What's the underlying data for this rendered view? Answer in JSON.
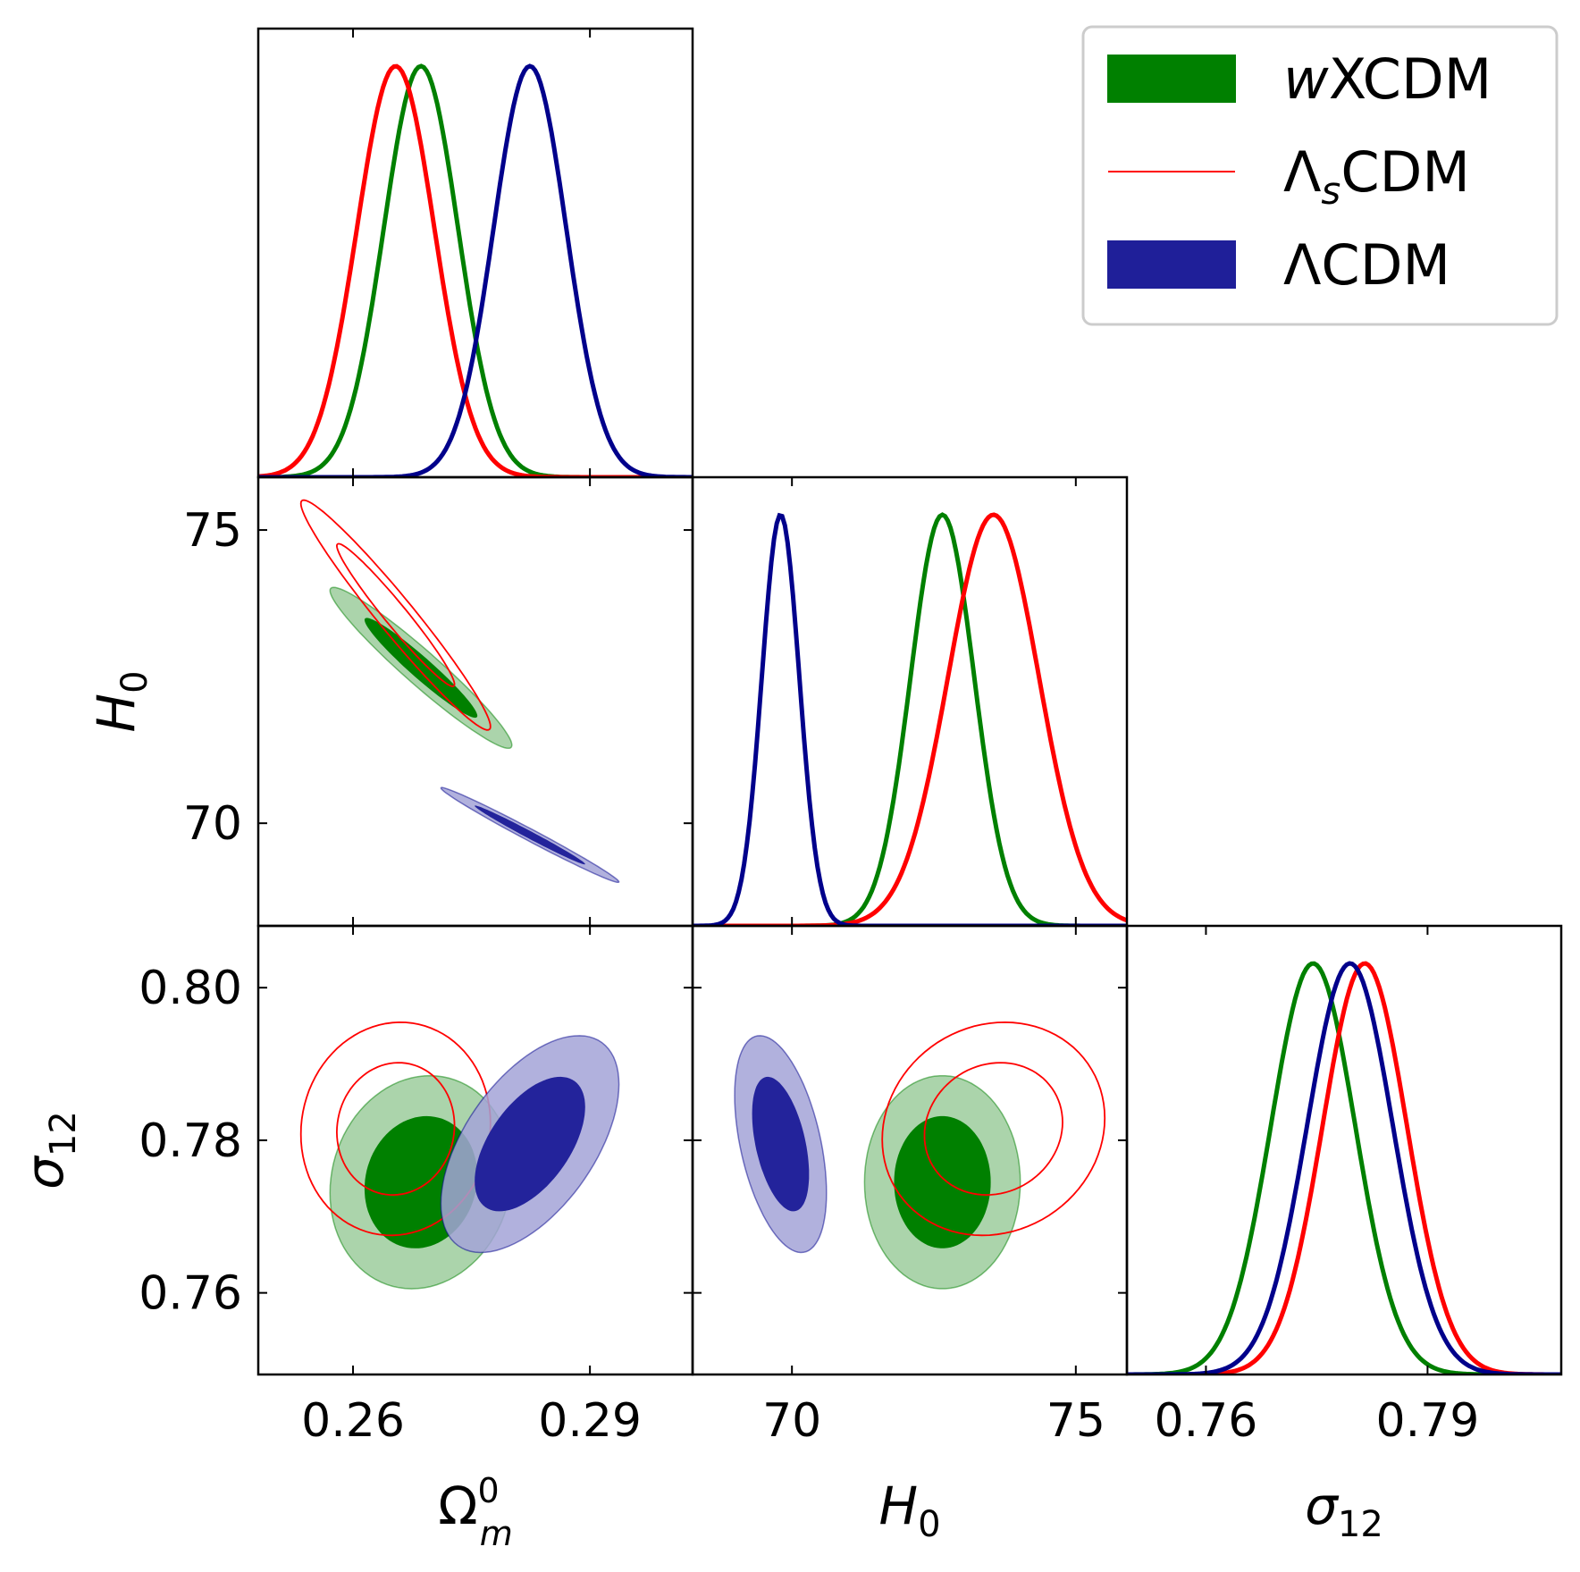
{
  "chart_data": {
    "type": "triangle-plot",
    "legend": {
      "placement": "top-right",
      "entries": [
        {
          "name": "wXCDM",
          "prefix": "w",
          "text": "XCDM",
          "style": "filled",
          "color": "#008000"
        },
        {
          "name": "ΛsCDM",
          "prefix": "Λ",
          "sub": "s",
          "text": "CDM",
          "style": "line",
          "color": "#ff0000"
        },
        {
          "name": "ΛCDM",
          "prefix": "ΛCDM",
          "text": "",
          "style": "filled",
          "color": "#1f1f99"
        }
      ]
    },
    "parameters": [
      {
        "key": "Om",
        "label": "Ω",
        "sup": "0",
        "sub": "m",
        "range": [
          0.248,
          0.303
        ],
        "ticks": [
          "0.26",
          "0.29"
        ],
        "tick_values": [
          0.26,
          0.29
        ]
      },
      {
        "key": "H0",
        "label": "H",
        "sub": "0",
        "range": [
          68.25,
          75.9
        ],
        "ticks": [
          "70",
          "75"
        ],
        "tick_values": [
          70,
          75
        ]
      },
      {
        "key": "s12",
        "label": "σ",
        "sub": "12",
        "range": [
          0.7493,
          0.8081
        ],
        "ticks": [
          "0.76",
          "0.78",
          "0.80",
          "0.76",
          "0.79"
        ],
        "tick_values_y": [
          0.76,
          0.78,
          0.8
        ],
        "tick_values_x": [
          0.76,
          0.79
        ]
      }
    ],
    "series": [
      {
        "name": "wXCDM",
        "color": "#008000",
        "fill_inner": "#008000",
        "fill_outer": "#9ccc9c",
        "filled": true,
        "Om": {
          "mean": 0.2686,
          "sd": 0.0047
        },
        "H0": {
          "mean": 72.65,
          "sd": 0.56
        },
        "s12": {
          "mean": 0.7745,
          "sd": 0.0057
        },
        "contours": {
          "Om_H0": {
            "rho": -0.96
          },
          "Om_s12": {
            "rho": 0.1
          },
          "H0_s12": {
            "rho": 0.0
          }
        }
      },
      {
        "name": "ΛsCDM",
        "color": "#ff0000",
        "filled": false,
        "Om": {
          "mean": 0.2654,
          "sd": 0.0049
        },
        "H0": {
          "mean": 73.55,
          "sd": 0.8
        },
        "s12": {
          "mean": 0.7815,
          "sd": 0.0057
        },
        "contours": {
          "Om_H0": {
            "rho": -0.97
          },
          "Om_s12": {
            "rho": 0.05
          },
          "H0_s12": {
            "rho": 0.1
          }
        }
      },
      {
        "name": "ΛCDM",
        "color": "#00008b",
        "fill_inner": "#23239b",
        "fill_outer": "#a3a3d7",
        "filled": true,
        "Om": {
          "mean": 0.2824,
          "sd": 0.0046
        },
        "H0": {
          "mean": 69.8,
          "sd": 0.33
        },
        "s12": {
          "mean": 0.7795,
          "sd": 0.0058
        },
        "contours": {
          "Om_H0": {
            "rho": -0.99
          },
          "Om_s12": {
            "rho": 0.55
          },
          "H0_s12": {
            "rho": -0.45
          }
        }
      }
    ]
  }
}
